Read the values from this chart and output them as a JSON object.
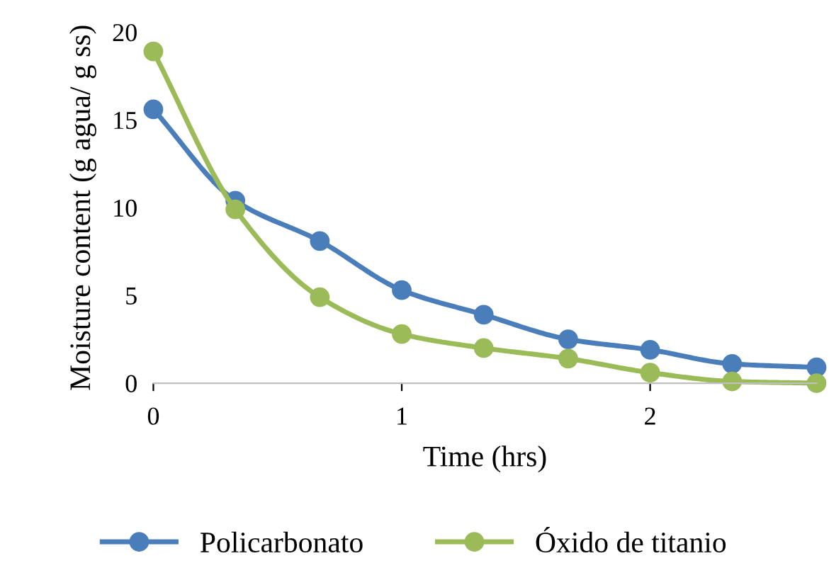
{
  "chart_data": {
    "type": "line",
    "xlabel": "Time (hrs)",
    "ylabel": "Moisture content (g agua/ g ss)",
    "x": [
      0,
      0.33,
      0.67,
      1.0,
      1.33,
      1.67,
      2.0,
      2.33,
      2.67
    ],
    "series": [
      {
        "name": "Policarbonato",
        "color": "#4a7ebb",
        "values": [
          15.6,
          10.4,
          8.1,
          5.3,
          3.9,
          2.5,
          1.9,
          1.1,
          0.9
        ]
      },
      {
        "name": "Óxido de titanio",
        "color": "#9bbb59",
        "values": [
          18.9,
          9.9,
          4.9,
          2.8,
          2.0,
          1.4,
          0.6,
          0.1,
          0.0
        ]
      }
    ],
    "xlim": [
      0,
      2.67
    ],
    "xticks": [
      0,
      1,
      2
    ],
    "ylim": [
      0,
      20
    ],
    "yticks": [
      0,
      5,
      10,
      15,
      20
    ],
    "grid": false,
    "legend": "bottom",
    "marker": "circle",
    "line_style": "solid"
  }
}
